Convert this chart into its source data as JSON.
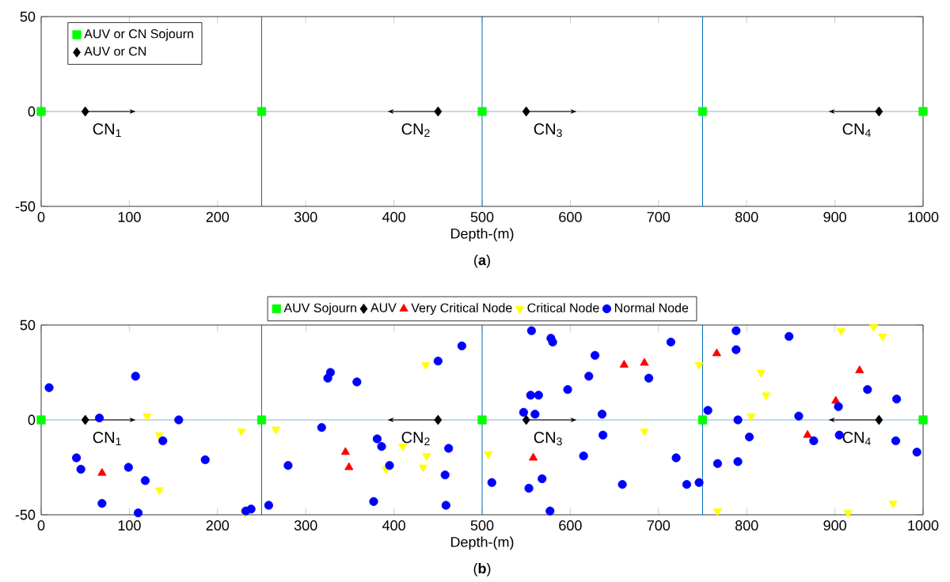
{
  "chart_data": [
    {
      "type": "scatter",
      "title": "(**a**)",
      "xlabel": "Depth-(m)",
      "xlim": [
        0,
        1000
      ],
      "ylim": [
        -50,
        50
      ],
      "xticks": [
        0,
        100,
        200,
        300,
        400,
        500,
        600,
        700,
        800,
        900,
        1000
      ],
      "yticks": [
        -50,
        0,
        50
      ],
      "legend": "top left",
      "series": [
        {
          "type": "line",
          "color": "#000000",
          "x": [
            50,
            100
          ],
          "values": [
            0,
            0
          ]
        },
        {
          "type": "line",
          "color": "#000000",
          "x": [
            450,
            400
          ],
          "values": [
            0,
            0
          ]
        },
        {
          "type": "line",
          "color": "#000000",
          "x": [
            550,
            600
          ],
          "values": [
            0,
            0
          ]
        },
        {
          "type": "line",
          "color": "#000000",
          "x": [
            950,
            900
          ],
          "values": [
            0,
            0
          ]
        },
        {
          "name": "AUV or CN Sojourn",
          "marker": "square",
          "color": "#00ff00",
          "x": [
            0,
            250,
            500,
            750,
            1000
          ],
          "values": [
            0,
            0,
            0,
            0,
            0
          ]
        },
        {
          "name": "AUV or CN",
          "marker": "diamond",
          "color": "#000000",
          "x": [
            50,
            450,
            550,
            950
          ],
          "values": [
            0,
            0,
            0,
            0
          ]
        }
      ],
      "ref_lines": [
        {
          "axis": "y",
          "value": 0,
          "color": "#7fb3dc"
        },
        {
          "axis": "x",
          "value": 250,
          "color": "#0072bd"
        },
        {
          "axis": "x",
          "value": 500,
          "color": "#0072bd"
        },
        {
          "axis": "x",
          "value": 750,
          "color": "#0072bd"
        }
      ],
      "annotations": [
        "CN$_{1}$",
        "CN$_{2}$",
        "CN$_{3}$",
        "CN$_{4}$"
      ]
    },
    {
      "type": "scatter",
      "title": "(**b**)",
      "xlabel": "Depth-(m)",
      "xlim": [
        0,
        1000
      ],
      "ylim": [
        -50,
        50
      ],
      "xticks": [
        0,
        100,
        200,
        300,
        400,
        500,
        600,
        700,
        800,
        900,
        1000
      ],
      "yticks": [
        -50,
        0,
        50
      ],
      "legend": "top",
      "series": [
        {
          "type": "line",
          "color": "#000000",
          "x": [
            50,
            100
          ],
          "values": [
            0,
            0
          ]
        },
        {
          "type": "line",
          "color": "#000000",
          "x": [
            450,
            400
          ],
          "values": [
            0,
            0
          ]
        },
        {
          "type": "line",
          "color": "#000000",
          "x": [
            550,
            600
          ],
          "values": [
            0,
            0
          ]
        },
        {
          "type": "line",
          "color": "#000000",
          "x": [
            950,
            900
          ],
          "values": [
            0,
            0
          ]
        },
        {
          "name": "AUV Sojourn",
          "marker": "square",
          "color": "#00ff00",
          "x": [
            0,
            250,
            500,
            750,
            1000
          ],
          "values": [
            0,
            0,
            0,
            0,
            0
          ]
        },
        {
          "name": "AUV",
          "marker": "diamond",
          "color": "#000000",
          "x": [
            50,
            450,
            550,
            950
          ],
          "values": [
            0,
            0,
            0,
            0
          ]
        },
        {
          "name": "Very Critical Node",
          "marker": "triangle",
          "color": "#ff0000",
          "x": [
            69,
            345,
            349,
            661,
            684,
            558,
            766,
            928,
            901,
            869
          ],
          "values": [
            -28,
            -17,
            -25,
            29,
            30,
            -20,
            35,
            26,
            10,
            -8
          ]
        },
        {
          "name": "Critical Node",
          "marker": "triangle-down",
          "color": "#ffff00",
          "x": [
            120,
            134,
            134,
            227,
            231,
            266,
            436,
            410,
            437,
            433,
            391,
            746,
            684,
            507,
            816,
            822,
            805,
            907,
            944,
            954,
            966,
            767,
            915
          ],
          "values": [
            2,
            -8,
            -37,
            -6,
            -49,
            -5,
            29,
            -14,
            -19,
            -25,
            -26,
            29,
            -6,
            -18,
            25,
            13,
            2,
            47,
            49,
            44,
            -44,
            -48,
            -49
          ]
        },
        {
          "name": "Normal Node",
          "marker": "circle",
          "color": "#0000ff",
          "x": [
            9,
            107,
            66,
            40,
            45,
            99,
            138,
            118,
            186,
            69,
            110,
            156,
            232,
            238,
            258,
            328,
            325,
            358,
            477,
            450,
            318,
            381,
            386,
            280,
            395,
            462,
            458,
            377,
            459,
            556,
            578,
            580,
            714,
            628,
            621,
            689,
            597,
            555,
            564,
            547,
            560,
            636,
            637,
            615,
            720,
            511,
            553,
            568,
            659,
            732,
            746,
            577,
            756,
            788,
            788,
            848,
            790,
            803,
            859,
            904,
            905,
            876,
            937,
            970,
            969,
            993,
            767,
            790
          ],
          "values": [
            17,
            23,
            1,
            -20,
            -26,
            -25,
            -11,
            -32,
            -21,
            -44,
            -49,
            0,
            -48,
            -47,
            -45,
            25,
            22,
            20,
            39,
            31,
            -4,
            -10,
            -14,
            -24,
            -24,
            -15,
            -29,
            -43,
            -45,
            47,
            43,
            41,
            41,
            34,
            23,
            22,
            16,
            13,
            13,
            4,
            3,
            3,
            -8,
            -19,
            -20,
            -33,
            -36,
            -31,
            -34,
            -34,
            -33,
            -48,
            5,
            47,
            37,
            44,
            0,
            -9,
            2,
            7,
            -8,
            -11,
            16,
            11,
            -11,
            -17,
            -23,
            -22
          ]
        }
      ],
      "ref_lines": [
        {
          "axis": "y",
          "value": 0,
          "color": "#7fb3dc"
        },
        {
          "axis": "x",
          "value": 250,
          "color": "#0072bd"
        },
        {
          "axis": "x",
          "value": 500,
          "color": "#0072bd"
        },
        {
          "axis": "x",
          "value": 750,
          "color": "#0072bd"
        }
      ],
      "annotations": [
        "CN$_{1}$",
        "CN$_{2}$",
        "CN$_{3}$",
        "CN$_{4}$"
      ]
    }
  ]
}
